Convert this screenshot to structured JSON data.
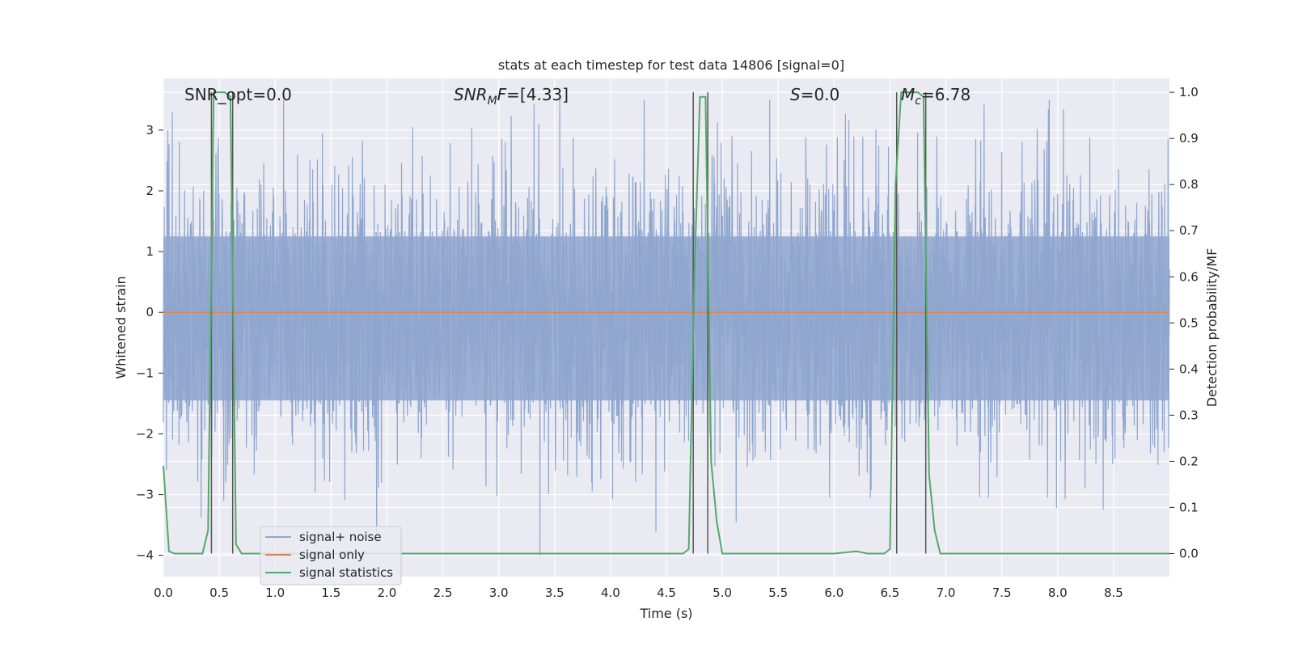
{
  "chart_data": {
    "type": "line",
    "title": "stats at each timestep for test data 14806 [signal=0]",
    "xlabel": "Time (s)",
    "ylabel_left": "Whitened strain",
    "ylabel_right": "Detection probability/MF",
    "xlim": [
      0.0,
      9.0
    ],
    "ylim_left": [
      -4.35,
      3.85
    ],
    "ylim_right": [
      -0.05,
      1.03
    ],
    "x_ticks": [
      "0.0",
      "0.5",
      "1.0",
      "1.5",
      "2.0",
      "2.5",
      "3.0",
      "3.5",
      "4.0",
      "4.5",
      "5.0",
      "5.5",
      "6.0",
      "6.5",
      "7.0",
      "7.5",
      "8.0",
      "8.5"
    ],
    "y_ticks_left": [
      "3",
      "2",
      "1",
      "0",
      "−1",
      "−2",
      "−3",
      "−4"
    ],
    "y_ticks_right": [
      "1.0",
      "0.9",
      "0.8",
      "0.7",
      "0.6",
      "0.5",
      "0.4",
      "0.3",
      "0.2",
      "0.1",
      "0.0"
    ],
    "grid": true,
    "legend_position": "lower-left",
    "annotations": {
      "snr_opt": "SNR_opt=0.0",
      "snr_mf_italic": "SNR",
      "snr_mf_sub": "M",
      "snr_mf_italic2": "F",
      "snr_mf_value": "=[4.33]",
      "s_italic": "S",
      "s_value": "=0.0",
      "mc_italic": "M",
      "mc_sub": "c",
      "mc_value": "=6.78"
    },
    "series": [
      {
        "name": "signal+ noise",
        "color": "#8fa6cf",
        "description_values": "whitened strain noise, approx. Gaussian, |peak| up to ~4",
        "amplitude_envelope": [
          -4.0,
          3.5
        ]
      },
      {
        "name": "signal only",
        "color": "#dd8452",
        "values_constant": 0.0
      },
      {
        "name": "signal statistics",
        "color": "#55a868",
        "x": [
          0.0,
          0.05,
          0.1,
          0.15,
          0.2,
          0.25,
          0.3,
          0.35,
          0.4,
          0.45,
          0.5,
          0.55,
          0.6,
          0.65,
          0.7,
          0.75,
          0.8,
          0.85,
          0.9,
          1.0,
          2.0,
          3.0,
          4.0,
          4.5,
          4.6,
          4.65,
          4.7,
          4.75,
          4.8,
          4.85,
          4.9,
          4.95,
          5.0,
          5.5,
          6.0,
          6.2,
          6.3,
          6.4,
          6.45,
          6.5,
          6.55,
          6.6,
          6.65,
          6.7,
          6.75,
          6.8,
          6.85,
          6.9,
          6.95,
          7.0,
          8.0,
          9.0
        ],
        "y": [
          0.19,
          0.005,
          0.0,
          0.0,
          0.0,
          0.0,
          0.0,
          0.0,
          0.05,
          1.0,
          1.0,
          1.0,
          0.99,
          0.02,
          0.0,
          0.0,
          0.0,
          0.0,
          0.0,
          0.0,
          0.0,
          0.0,
          0.0,
          0.0,
          0.0,
          0.0,
          0.01,
          0.6,
          0.99,
          0.99,
          0.2,
          0.07,
          0.0,
          0.0,
          0.0,
          0.005,
          0.0,
          0.0,
          0.0,
          0.01,
          0.8,
          1.0,
          1.0,
          1.0,
          1.0,
          0.99,
          0.17,
          0.05,
          0.0,
          0.0,
          0.0,
          0.0
        ]
      }
    ],
    "vertical_markers_x": [
      0.43,
      0.62,
      4.74,
      4.87,
      6.56,
      6.82
    ]
  }
}
